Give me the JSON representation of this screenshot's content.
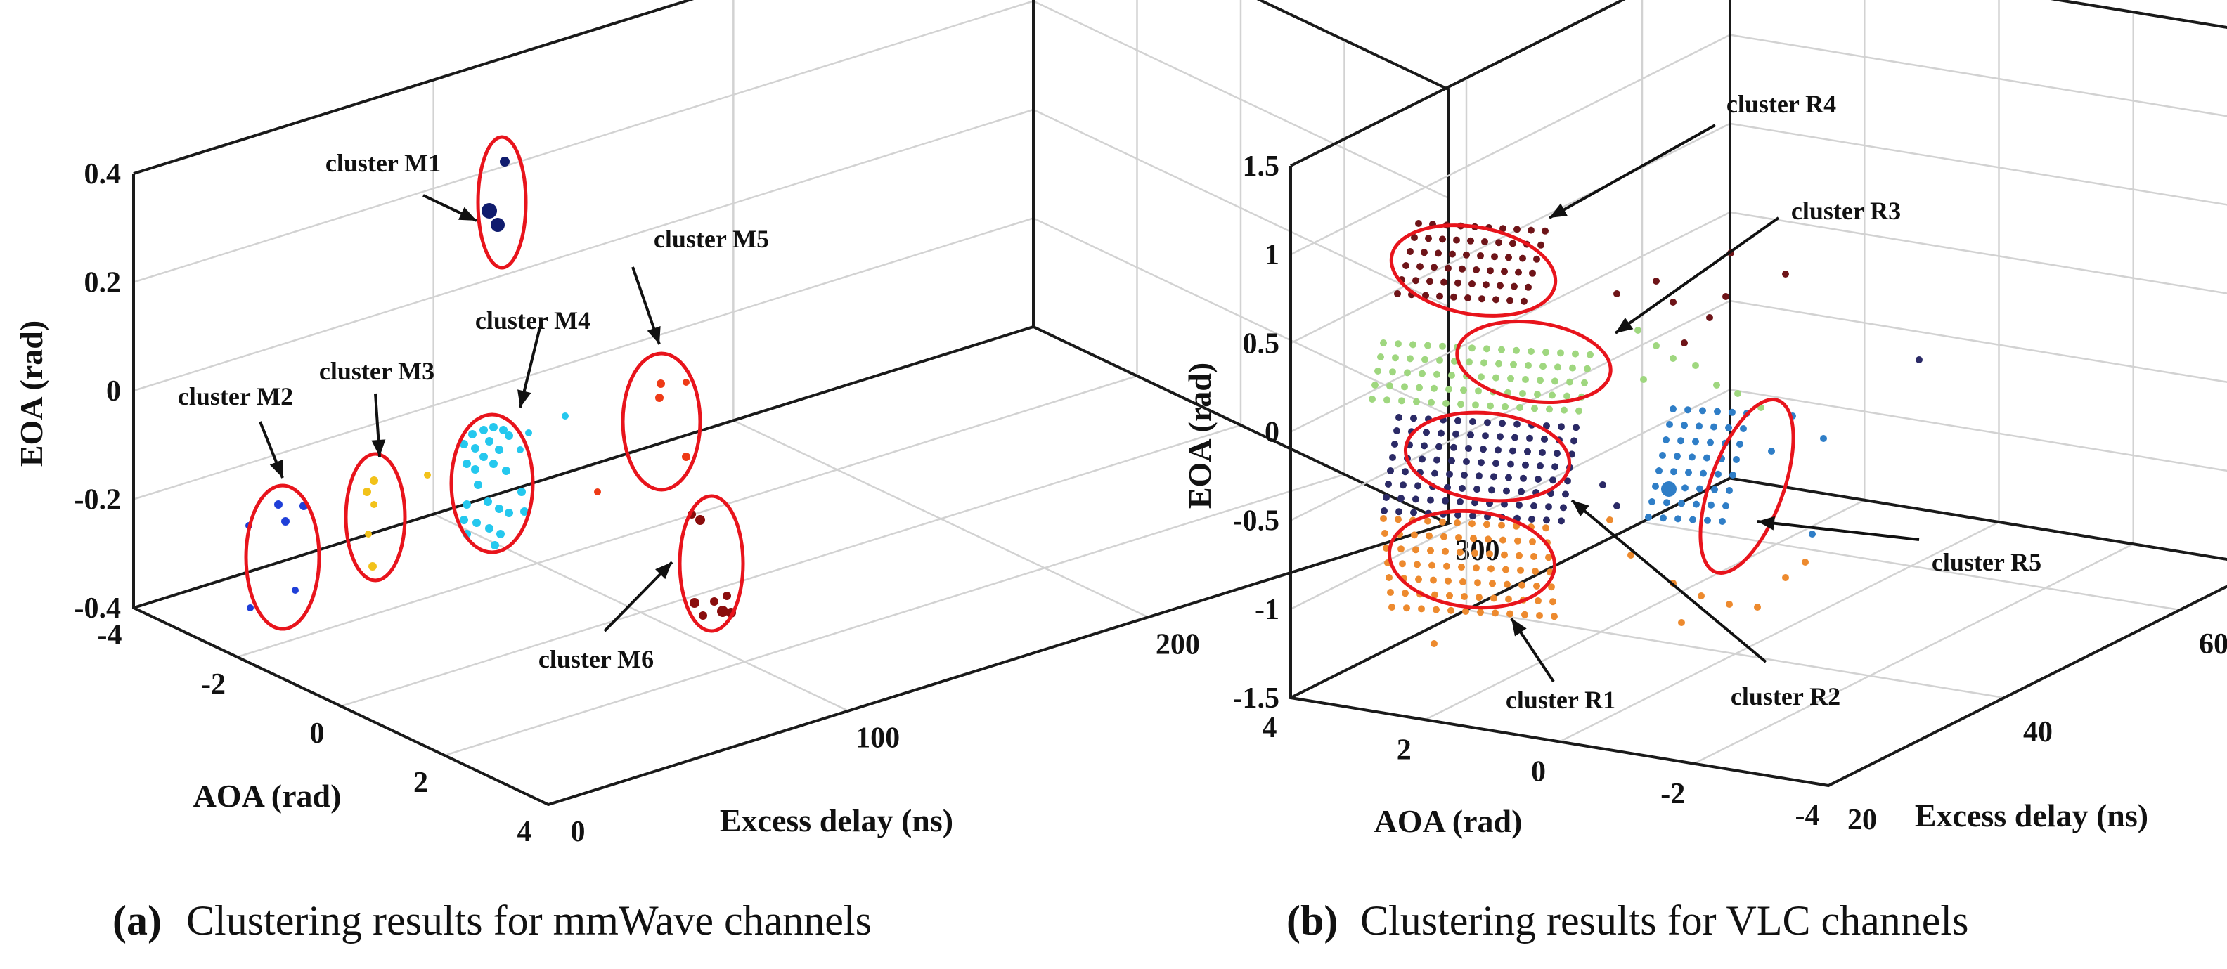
{
  "chart_data": [
    {
      "type": "scatter",
      "projection": "3d",
      "subfigure_label": "(a)",
      "caption": "Clustering results for mmWave channels",
      "xlabel": "AOA (rad)",
      "ylabel": "Excess delay (ns)",
      "zlabel": "EOA (rad)",
      "xlim": [
        -4,
        4
      ],
      "ylim": [
        0,
        300
      ],
      "zlim": [
        -0.4,
        0.4
      ],
      "x_ticks": [
        "-4",
        "-2",
        "0",
        "2",
        "4"
      ],
      "y_ticks": [
        "0",
        "100",
        "200",
        "300"
      ],
      "z_ticks": [
        "-0.4",
        "-0.2",
        "0",
        "0.2",
        "0.4"
      ],
      "grid": true,
      "clusters": [
        {
          "name": "cluster M1",
          "color": "#101c6e"
        },
        {
          "name": "cluster M2",
          "color": "#1f3fd8"
        },
        {
          "name": "cluster M3",
          "color": "#f2c21a"
        },
        {
          "name": "cluster M4",
          "color": "#25c8ee"
        },
        {
          "name": "cluster M5",
          "color": "#ee3a16"
        },
        {
          "name": "cluster M6",
          "color": "#8a0d0d"
        }
      ]
    },
    {
      "type": "scatter",
      "projection": "3d",
      "subfigure_label": "(b)",
      "caption": "Clustering results for VLC channels",
      "xlabel": "AOA (rad)",
      "ylabel": "Excess delay (ns)",
      "zlabel": "EOA (rad)",
      "xlim": [
        4,
        -4
      ],
      "ylim": [
        20,
        60
      ],
      "zlim": [
        -1.5,
        1.5
      ],
      "x_ticks": [
        "4",
        "2",
        "0",
        "-2",
        "-4"
      ],
      "y_ticks": [
        "20",
        "40",
        "60"
      ],
      "z_ticks": [
        "-1.5",
        "-1",
        "-0.5",
        "0",
        "0.5",
        "1",
        "1.5"
      ],
      "grid": true,
      "clusters": [
        {
          "name": "cluster R1",
          "color": "#ed8a2e"
        },
        {
          "name": "cluster R2",
          "color": "#2b2a66"
        },
        {
          "name": "cluster R3",
          "color": "#9fd77f"
        },
        {
          "name": "cluster R4",
          "color": "#6e1418"
        },
        {
          "name": "cluster R5",
          "color": "#2f7ec7"
        }
      ]
    }
  ]
}
